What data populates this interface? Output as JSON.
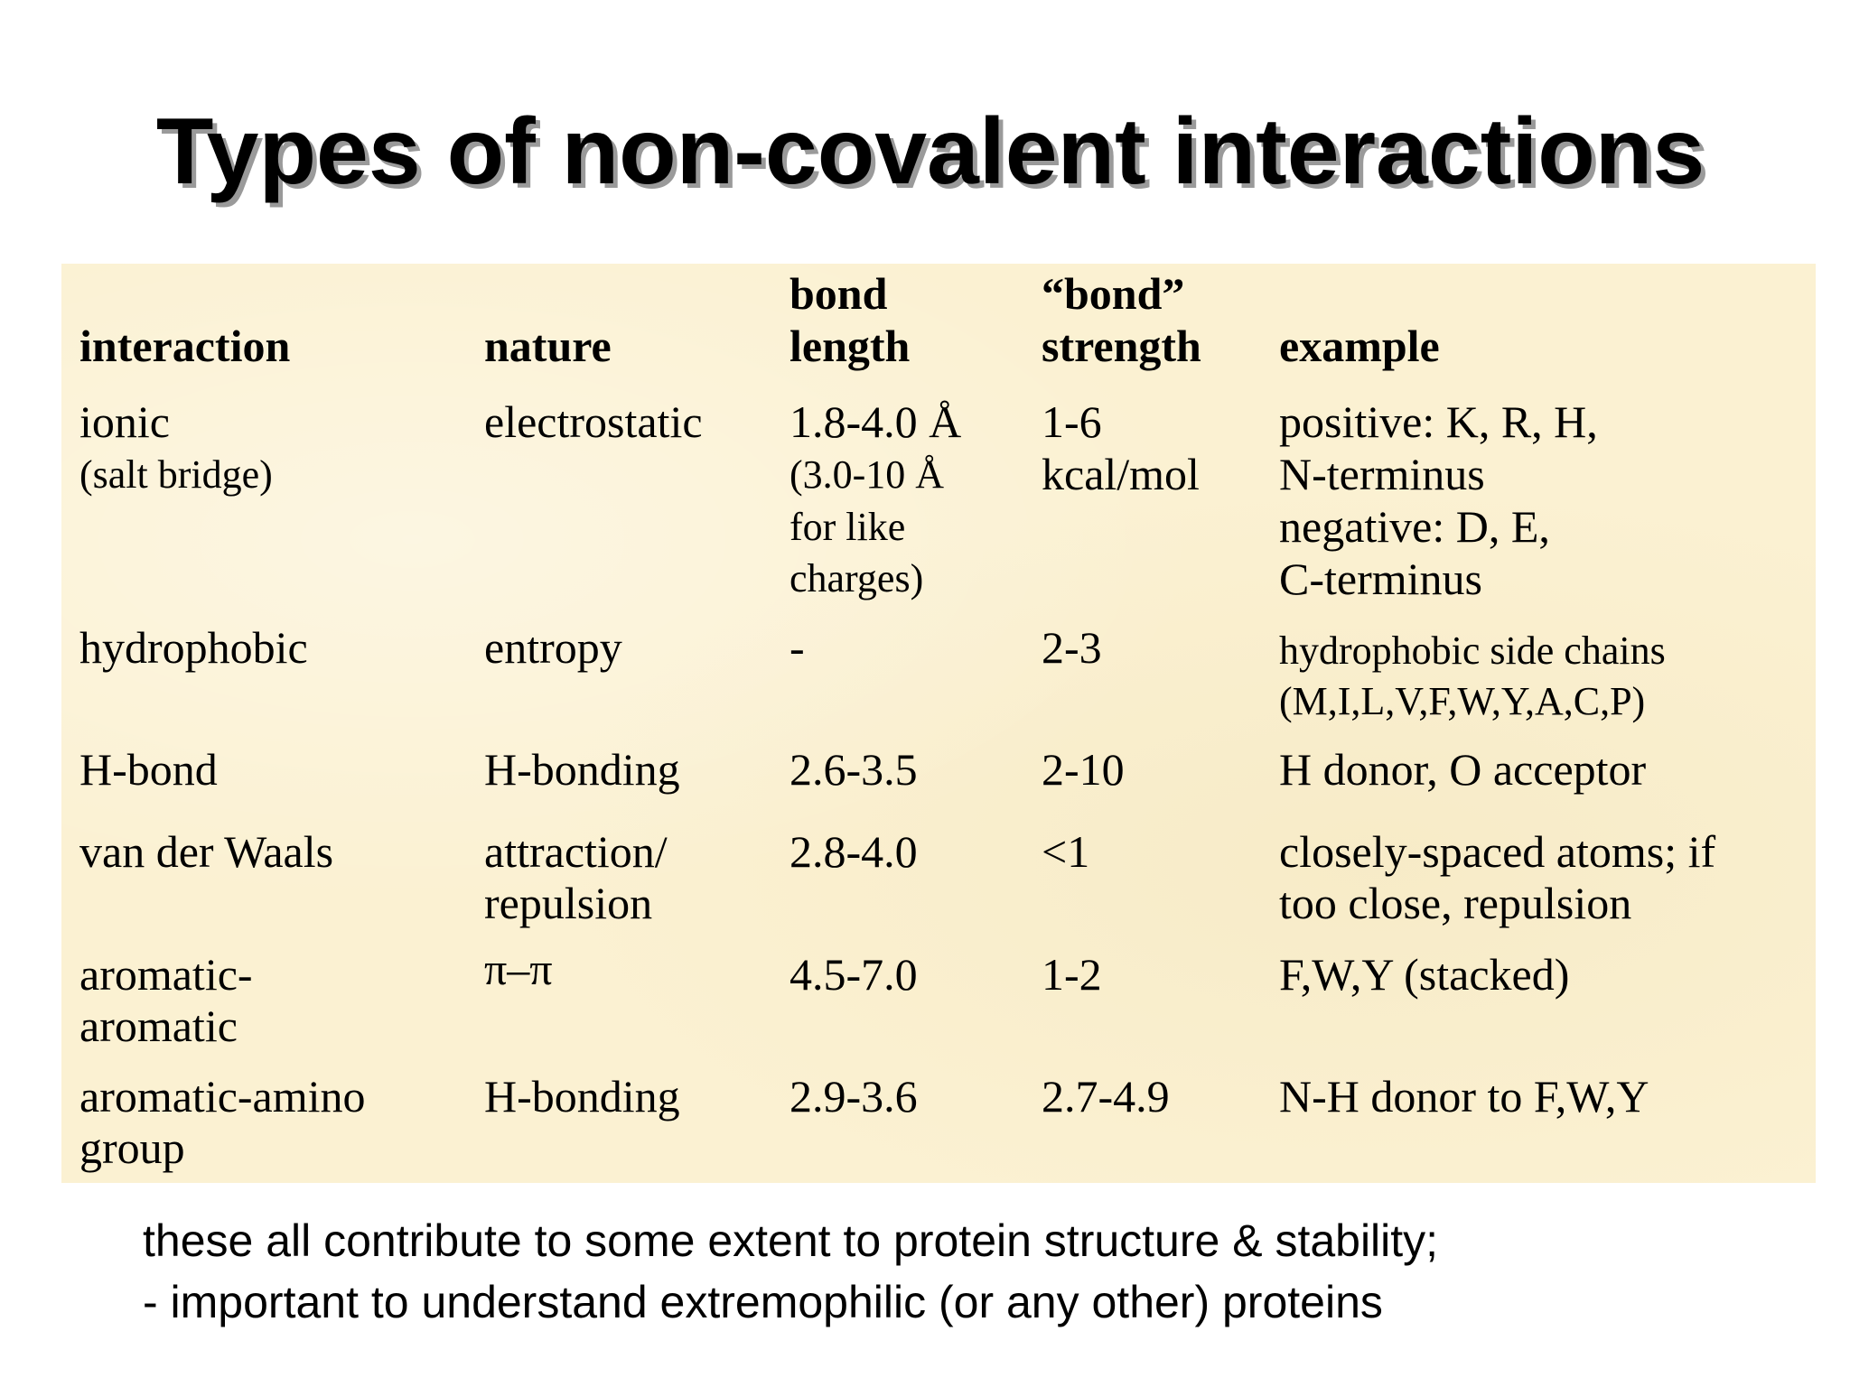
{
  "title": "Types of non-covalent interactions",
  "table": {
    "headers": {
      "interaction": "interaction",
      "nature": "nature",
      "bond_length_1": "bond",
      "bond_length_2": "length",
      "bond_strength_1": "“bond”",
      "bond_strength_2": "strength",
      "example": "example"
    },
    "rows": [
      {
        "interaction": [
          "ionic",
          "(salt bridge)"
        ],
        "nature": [
          "electrostatic"
        ],
        "length": [
          "1.8-4.0 Å",
          "(3.0-10 Å",
          "for like",
          "charges)"
        ],
        "strength": [
          "1-6",
          "kcal/mol"
        ],
        "example": [
          "positive: K, R, H,",
          "N-terminus",
          "negative: D, E,",
          "C-terminus"
        ]
      },
      {
        "interaction": [
          "hydrophobic"
        ],
        "nature": [
          "entropy"
        ],
        "length": [
          "-"
        ],
        "strength": [
          "2-3"
        ],
        "example": [
          "hydrophobic side chains",
          "(M,I,L,V,F,W,Y,A,C,P)"
        ]
      },
      {
        "interaction": [
          "H-bond"
        ],
        "nature": [
          "H-bonding"
        ],
        "length": [
          "2.6-3.5"
        ],
        "strength": [
          "2-10"
        ],
        "example": [
          "H donor, O acceptor"
        ]
      },
      {
        "interaction": [
          "van der Waals"
        ],
        "nature": [
          "attraction/",
          "repulsion"
        ],
        "length": [
          "2.8-4.0"
        ],
        "strength": [
          "<1"
        ],
        "example": [
          "closely-spaced atoms; if",
          "too close, repulsion"
        ]
      },
      {
        "interaction": [
          "aromatic-",
          "aromatic"
        ],
        "nature": [
          "π–π"
        ],
        "length": [
          "4.5-7.0"
        ],
        "strength": [
          "1-2"
        ],
        "example": [
          "F,W,Y (stacked)"
        ]
      },
      {
        "interaction": [
          "aromatic-amino",
          "group"
        ],
        "nature": [
          "H-bonding"
        ],
        "length": [
          "2.9-3.6"
        ],
        "strength": [
          "2.7-4.9"
        ],
        "example": [
          "N-H donor to F,W,Y"
        ]
      }
    ]
  },
  "footer": {
    "line1": "these all contribute to some extent to protein structure & stability;",
    "line2": "- important to understand extremophilic (or any other) proteins"
  }
}
